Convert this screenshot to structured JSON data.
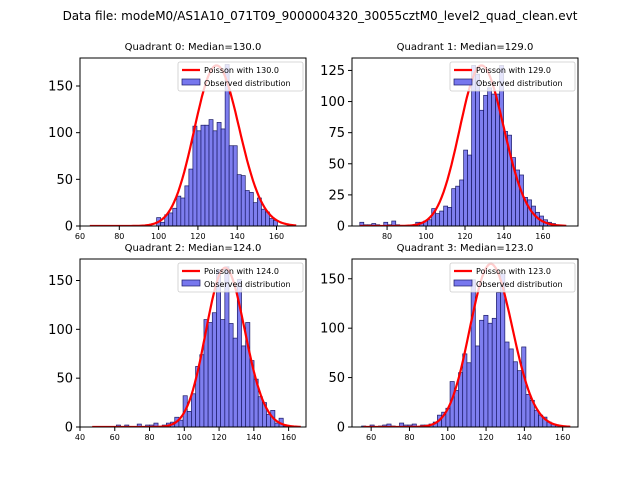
{
  "suptitle": "Data file: modeM0/AS1A10_071T09_9000004320_30055cztM0_level2_quad_clean.evt",
  "colors": {
    "bar_fill": "#7777ee",
    "bar_edge": "#1a1a66",
    "curve": "#ff0000"
  },
  "chart_data": [
    {
      "type": "bar",
      "title": "Quadrant 0: Median=130.0",
      "legend": {
        "curve_label": "Poisson with 130.0",
        "bar_label": "Observed distribution",
        "placement": "upper-right"
      },
      "xlim": [
        60,
        175
      ],
      "ylim": [
        0,
        180
      ],
      "xticks": [
        60,
        80,
        100,
        120,
        140,
        160
      ],
      "yticks": [
        0,
        50,
        100,
        150
      ],
      "bin_start": 99.0,
      "bin_width": 2.05,
      "values": [
        9,
        4,
        12,
        14,
        19,
        32,
        30,
        43,
        61,
        107,
        102,
        108,
        108,
        114,
        102,
        111,
        104,
        173,
        86,
        86,
        55,
        54,
        38,
        36,
        25,
        30,
        18,
        15,
        8,
        6
      ],
      "poisson_mean": 130.0,
      "curve_range": [
        65,
        170
      ],
      "curve_peak": 172
    },
    {
      "type": "bar",
      "title": "Quadrant 1: Median=129.0",
      "legend": {
        "curve_label": "Poisson with 129.0",
        "bar_label": "Observed distribution",
        "placement": "upper-right"
      },
      "xlim": [
        62,
        178
      ],
      "ylim": [
        0,
        135
      ],
      "xticks": [
        80,
        100,
        120,
        140,
        160
      ],
      "yticks": [
        0,
        25,
        50,
        75,
        100,
        125
      ],
      "bin_start": 66.0,
      "bin_width": 2.05,
      "values": [
        3,
        1,
        1,
        2,
        1,
        0,
        3,
        1,
        4,
        1,
        0,
        0,
        0,
        1,
        3,
        3,
        4,
        5,
        14,
        10,
        12,
        16,
        15,
        30,
        32,
        37,
        61,
        57,
        129,
        122,
        93,
        105,
        111,
        106,
        106,
        129,
        76,
        73,
        55,
        45,
        41,
        23,
        21,
        16,
        11,
        8,
        5,
        3,
        2,
        1
      ],
      "poisson_mean": 129.0,
      "curve_range": [
        66,
        172
      ],
      "curve_peak": 129
    },
    {
      "type": "bar",
      "title": "Quadrant 2: Median=124.0",
      "legend": {
        "curve_label": "Poisson with 124.0",
        "bar_label": "Observed distribution",
        "placement": "upper-right"
      },
      "xlim": [
        40,
        170
      ],
      "ylim": [
        0,
        172
      ],
      "xticks": [
        40,
        60,
        80,
        100,
        120,
        140,
        160
      ],
      "yticks": [
        0,
        50,
        100,
        150
      ],
      "bin_start": 46.5,
      "bin_width": 2.4,
      "values": [
        0,
        0,
        0,
        0,
        0,
        0,
        2,
        0,
        2,
        0,
        0,
        3,
        0,
        2,
        2,
        4,
        0,
        2,
        4,
        5,
        10,
        7,
        32,
        16,
        34,
        62,
        74,
        110,
        107,
        117,
        161,
        110,
        164,
        106,
        91,
        151,
        83,
        107,
        68,
        49,
        31,
        25,
        13,
        17,
        4,
        9,
        1
      ],
      "poisson_mean": 124.0,
      "curve_range": [
        47,
        167
      ],
      "curve_peak": 163
    },
    {
      "type": "bar",
      "title": "Quadrant 3: Median=123.0",
      "legend": {
        "curve_label": "Poisson with 123.0",
        "bar_label": "Observed distribution",
        "placement": "upper-right"
      },
      "xlim": [
        50,
        168
      ],
      "ylim": [
        0,
        170
      ],
      "xticks": [
        60,
        80,
        100,
        120,
        140,
        160
      ],
      "yticks": [
        0,
        50,
        100,
        150
      ],
      "bin_start": 55.0,
      "bin_width": 2.2,
      "values": [
        1,
        0,
        2,
        0,
        1,
        2,
        3,
        1,
        0,
        4,
        2,
        2,
        3,
        0,
        2,
        2,
        3,
        5,
        12,
        15,
        19,
        46,
        37,
        55,
        74,
        65,
        149,
        82,
        108,
        113,
        105,
        110,
        136,
        155,
        86,
        79,
        66,
        57,
        81,
        33,
        27,
        17,
        12,
        10,
        5,
        3,
        2,
        1,
        0,
        0
      ],
      "poisson_mean": 123.0,
      "curve_range": [
        56,
        164
      ],
      "curve_peak": 165
    }
  ]
}
